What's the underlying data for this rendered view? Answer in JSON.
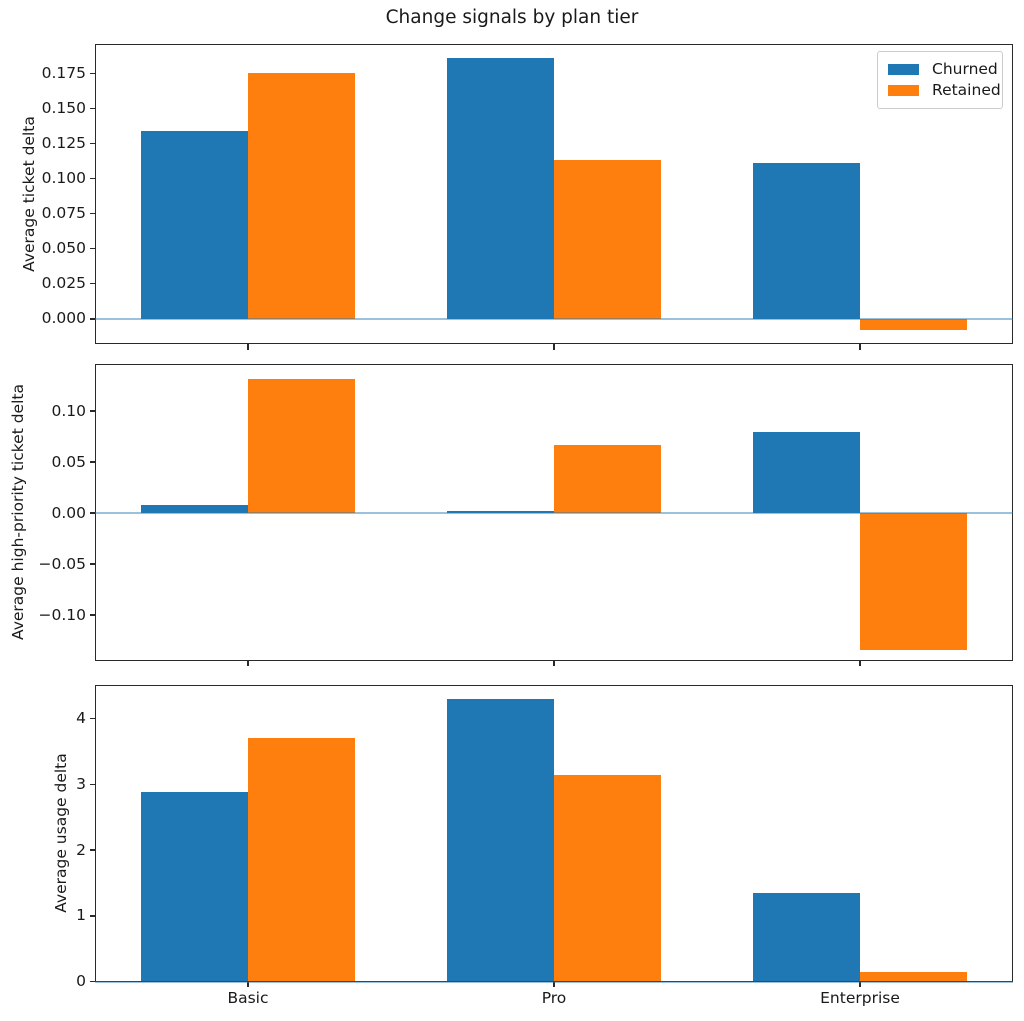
{
  "title": "Change signals by plan tier",
  "categories": [
    "Basic",
    "Pro",
    "Enterprise"
  ],
  "legend": {
    "position": "upper right",
    "items": [
      {
        "label": "Churned",
        "color": "#1f77b4"
      },
      {
        "label": "Retained",
        "color": "#ff7f0e"
      }
    ]
  },
  "colors": {
    "churned": "#1f77b4",
    "retained": "#ff7f0e",
    "zero_line": "#a9c9e8",
    "spine": "#2a2a2a",
    "text": "#1a1a1a",
    "legend_border": "#cccccc"
  },
  "chart_data": [
    {
      "type": "bar",
      "title": "Change signals by plan tier",
      "categories": [
        "Basic",
        "Pro",
        "Enterprise"
      ],
      "series": [
        {
          "name": "Churned",
          "values": [
            0.134,
            0.186,
            0.111
          ]
        },
        {
          "name": "Retained",
          "values": [
            0.175,
            0.113,
            -0.008
          ]
        }
      ],
      "xlabel": "",
      "ylabel": "Average ticket delta",
      "yticks": [
        0.0,
        0.025,
        0.05,
        0.075,
        0.1,
        0.125,
        0.15,
        0.175
      ],
      "ytick_labels": [
        "0.000",
        "0.025",
        "0.050",
        "0.075",
        "0.100",
        "0.125",
        "0.150",
        "0.175"
      ],
      "ylim": [
        -0.018,
        0.196
      ],
      "xlim": [
        -0.5,
        2.5
      ],
      "bar_width": 0.35,
      "axhline": 0,
      "grid": false,
      "show_xtick_labels": false,
      "legend_position": "upper right"
    },
    {
      "type": "bar",
      "title": "",
      "categories": [
        "Basic",
        "Pro",
        "Enterprise"
      ],
      "series": [
        {
          "name": "Churned",
          "values": [
            0.008,
            0.002,
            0.079
          ]
        },
        {
          "name": "Retained",
          "values": [
            0.131,
            0.067,
            -0.134
          ]
        }
      ],
      "xlabel": "",
      "ylabel": "Average high-priority ticket delta",
      "yticks": [
        -0.1,
        -0.05,
        0.0,
        0.05,
        0.1
      ],
      "ytick_labels": [
        "−0.10",
        "−0.05",
        "0.00",
        "0.05",
        "0.10"
      ],
      "ylim": [
        -0.1446,
        0.1466
      ],
      "xlim": [
        -0.5,
        2.5
      ],
      "bar_width": 0.35,
      "axhline": 0,
      "grid": false,
      "show_xtick_labels": false,
      "legend_position": null
    },
    {
      "type": "bar",
      "title": "",
      "categories": [
        "Basic",
        "Pro",
        "Enterprise"
      ],
      "series": [
        {
          "name": "Churned",
          "values": [
            2.89,
            4.3,
            1.35
          ]
        },
        {
          "name": "Retained",
          "values": [
            3.7,
            3.15,
            0.14
          ]
        }
      ],
      "xlabel": "",
      "ylabel": "Average usage delta",
      "yticks": [
        0,
        1,
        2,
        3,
        4
      ],
      "ytick_labels": [
        "0",
        "1",
        "2",
        "3",
        "4"
      ],
      "ylim": [
        0,
        4.52
      ],
      "xlim": [
        -0.5,
        2.5
      ],
      "bar_width": 0.35,
      "axhline": 0,
      "grid": false,
      "show_xtick_labels": true,
      "legend_position": null
    }
  ]
}
